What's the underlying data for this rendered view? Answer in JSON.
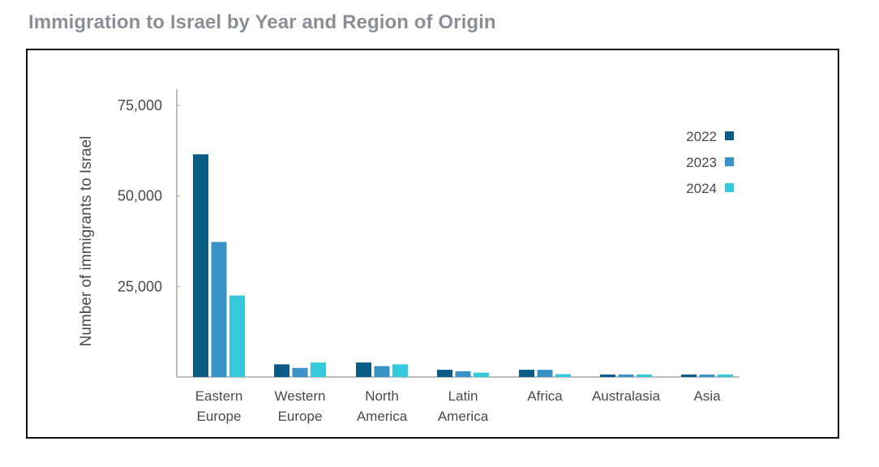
{
  "title": "Immigration to Israel by Year and Region of Origin",
  "chart_data": {
    "type": "bar",
    "title": "",
    "ylabel": "Number of immigrants to Israel",
    "xlabel": "",
    "ylim": [
      0,
      75000
    ],
    "yticks": [
      {
        "value": 25000,
        "label": "25,000"
      },
      {
        "value": 50000,
        "label": "50,000"
      },
      {
        "value": 75000,
        "label": "75,000"
      }
    ],
    "categories": [
      [
        "Eastern",
        "Europe"
      ],
      [
        "Western",
        "Europe"
      ],
      [
        "North",
        "America"
      ],
      [
        "Latin",
        "America"
      ],
      [
        "Africa"
      ],
      [
        "Australasia"
      ],
      [
        "Asia"
      ]
    ],
    "series": [
      {
        "name": "2022",
        "color": "#0b5c87",
        "values": [
          61500,
          3500,
          4000,
          2000,
          2000,
          700,
          700
        ]
      },
      {
        "name": "2023",
        "color": "#3a93c6",
        "values": [
          37300,
          2500,
          3000,
          1600,
          2000,
          700,
          700
        ]
      },
      {
        "name": "2024",
        "color": "#35c9dc",
        "values": [
          22500,
          4000,
          3500,
          1200,
          800,
          700,
          700
        ]
      }
    ],
    "legend_position": "top-right",
    "grid": false
  }
}
